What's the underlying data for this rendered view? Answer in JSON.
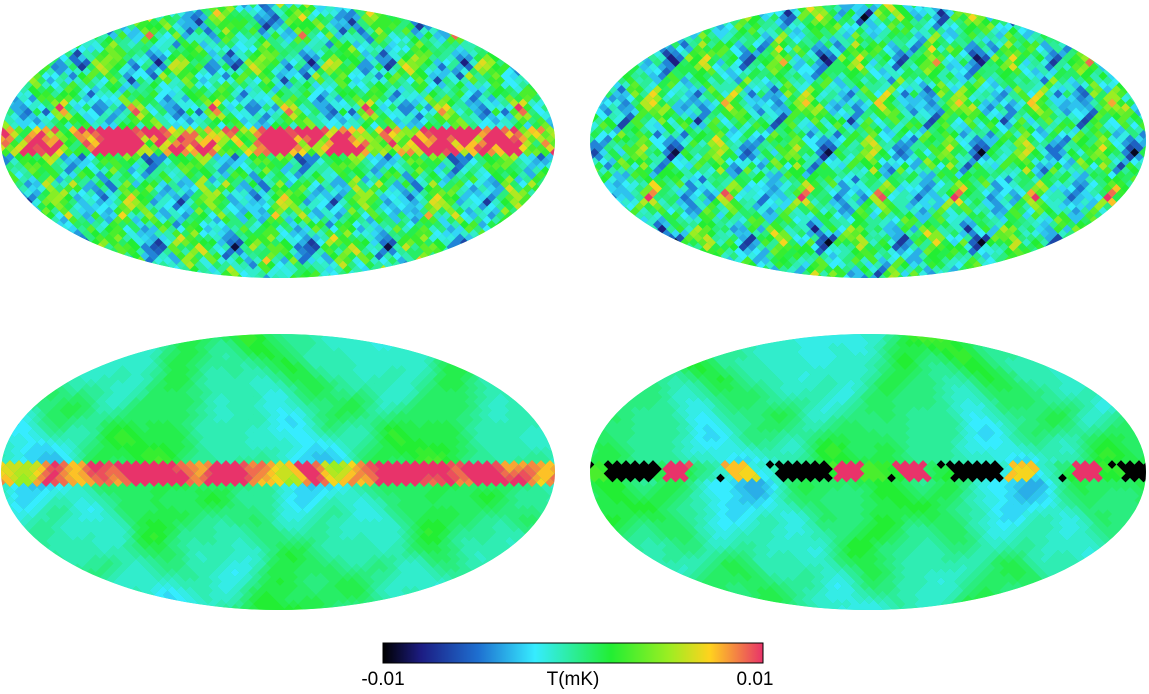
{
  "colorbar": {
    "min_label": "-0.01",
    "axis_label": "T(mK)",
    "max_label": "0.01"
  }
}
